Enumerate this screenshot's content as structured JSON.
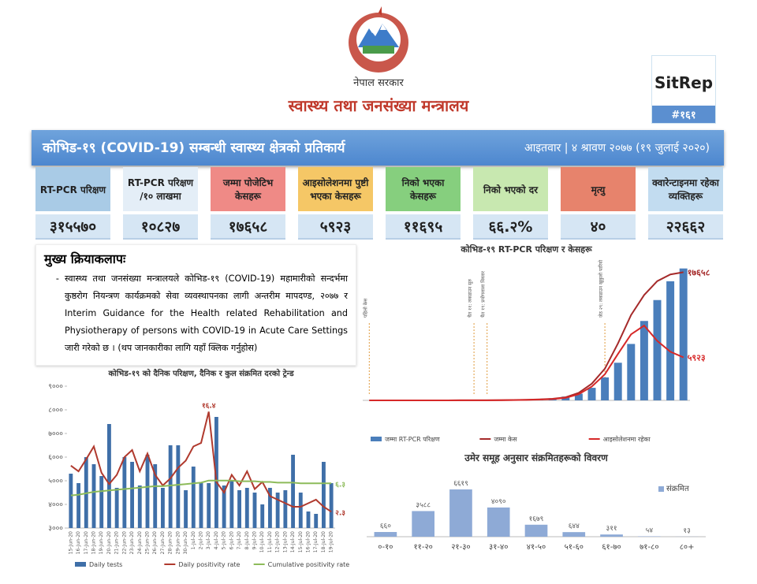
{
  "header": {
    "government": "नेपाल सरकार",
    "ministry": "स्वास्थ्य तथा जनसंख्या मन्त्रालय",
    "sitrep": "SitRep",
    "number": "#१६१"
  },
  "banner": {
    "title": "कोभिड-१९ (COVID-19) सम्बन्धी स्वास्थ्य क्षेत्रको प्रतिकार्य",
    "date": "आइतवार | ४ श्रावण २०७७ (१९ जुलाई २०२०)"
  },
  "stats": [
    {
      "label": "RT-PCR परिक्षण",
      "value": "३१५५७०"
    },
    {
      "label": "RT-PCR परिक्षण /१० लाखमा",
      "value": "१०८२७"
    },
    {
      "label": "जम्मा पोजेटिभ केसहरू",
      "value": "१७६५८"
    },
    {
      "label": "आइसोलेशनमा पुष्टी भएका केसहरू",
      "value": "५९२३"
    },
    {
      "label": "निको भएका केसहरू",
      "value": "११६९५"
    },
    {
      "label": "निको भएको दर",
      "value": "६६.२%"
    },
    {
      "label": "मृत्यु",
      "value": "४०"
    },
    {
      "label": "क्वारेन्टाइनमा रहेका व्यक्तिहरू",
      "value": "२२६६२"
    }
  ],
  "activities": {
    "heading": "मुख्य क्रियाकलापः",
    "items": [
      "स्वास्थ्य तथा जनसंख्या मन्त्रालयले कोभिड-१९ (COVID-19) महामारीको सन्दर्भमा कुष्ठरोग नियन्त्रण कार्यक्रमको सेवा व्यवस्थापनका लागी अन्तरीम मापदण्ड, २०७७ र Interim Guidance for the Health related Rehabilitation and Physiotherapy of persons with COVID-19 in Acute Care Settings जारी गरेको छ । (थप जानकारीका लागि यहाँ क्लिक गर्नुहोस)"
    ]
  },
  "chart_data": [
    {
      "type": "combo",
      "title": "कोभिड-१९ RT-PCR परिक्षण र केसहरू",
      "legend": "bottom",
      "categories": [
        null,
        null,
        null,
        null,
        null,
        null,
        null,
        null,
        null,
        null,
        null,
        null,
        null,
        null,
        null,
        null,
        null,
        null,
        null,
        null,
        null,
        null,
        null,
        null,
        null
      ],
      "ylim": [
        0,
        330000
      ],
      "y2lim": [
        0,
        19000
      ],
      "series": [
        {
          "name": "जम्मा RT-PCR परिक्षण",
          "mark": "bar",
          "color": "#4a7ebb",
          "values": [
            0,
            0,
            0,
            0,
            0,
            0,
            0,
            0,
            0,
            0,
            0,
            0,
            1000,
            2500,
            5000,
            9000,
            16000,
            30000,
            55000,
            90000,
            135000,
            190000,
            240000,
            285000,
            315570
          ]
        },
        {
          "name": "जम्मा केस",
          "mark": "line",
          "axis": "y2",
          "color": "#a52a2a",
          "values": [
            1,
            1,
            1,
            1,
            1,
            1,
            5,
            9,
            9,
            16,
            30,
            50,
            82,
            134,
            217,
            427,
            1042,
            2300,
            4364,
            7848,
            11755,
            14519,
            16423,
            17344,
            17658
          ],
          "value_labels": [
            null,
            null,
            null,
            null,
            null,
            null,
            null,
            null,
            null,
            null,
            null,
            null,
            null,
            null,
            null,
            null,
            null,
            null,
            null,
            null,
            null,
            null,
            null,
            null,
            "१७६५८"
          ]
        },
        {
          "name": "आइसोलेशनमा रहेका",
          "mark": "line",
          "axis": "y2",
          "color": "#d62828",
          "values": [
            1,
            1,
            1,
            1,
            1,
            1,
            5,
            9,
            8,
            15,
            27,
            44,
            70,
            110,
            180,
            350,
            850,
            1900,
            3600,
            6400,
            9100,
            10300,
            8200,
            6700,
            5923
          ],
          "value_labels": [
            null,
            null,
            null,
            null,
            null,
            null,
            null,
            null,
            null,
            null,
            null,
            null,
            null,
            null,
            null,
            null,
            null,
            null,
            null,
            null,
            null,
            null,
            null,
            null,
            "५९२३"
          ]
        }
      ],
      "annotations": [
        "पहिलो केस",
        "चैत ११: लकडाउन सुरु",
        "चैत १९: प्रयोगशाला विस्तार",
        "जेठ २९: लकडाउन खुकुलो पारियो"
      ]
    },
    {
      "type": "bar",
      "title": "उमेर समूह अनुसार संक्रमितहरूको विवरण",
      "legend": "top-right",
      "categories": [
        "०-१०",
        "११-२०",
        "२१-३०",
        "३१-४०",
        "४१-५०",
        "५१-६०",
        "६१-७०",
        "७१-८०",
        "८०+"
      ],
      "ylim": [
        0,
        7500
      ],
      "series": [
        {
          "name": "संक्रमित",
          "mark": "bar",
          "color": "#8eaad6",
          "values": [
            660,
            3588,
            6619,
            4090,
            1679,
            644,
            311,
            54,
            13
          ],
          "value_labels": [
            "६६०",
            "३५८८",
            "६६१९",
            "४०९०",
            "१६७९",
            "६४४",
            "३११",
            "५४",
            "१३"
          ]
        }
      ]
    },
    {
      "type": "combo",
      "title": "कोभिड-१९ को दैनिक परिक्षण, दैनिक र कुल संक्रमित दरको ट्रेन्ड",
      "legend": "bottom",
      "categories": [
        "15-Jun-20",
        "16-Jun-20",
        "17-Jun-20",
        "18-Jun-20",
        "19-Jun-20",
        "20-Jun-20",
        "21-Jun-20",
        "22-Jun-20",
        "23-Jun-20",
        "24-Jun-20",
        "25-Jun-20",
        "26-Jun-20",
        "27-Jun-20",
        "28-Jun-20",
        "29-Jun-20",
        "30-Jun-20",
        "1-Jul-20",
        "2-Jul-20",
        "3-Jul-20",
        "4-Jul-20",
        "5-Jul-20",
        "6-Jul-20",
        "7-Jul-20",
        "8-Jul-20",
        "9-Jul-20",
        "10-Jul-20",
        "11-Jul-20",
        "12-Jul-20",
        "13-Jul-20",
        "14-Jul-20",
        "15-Jul-20",
        "16-Jul-20",
        "17-Jul-20",
        "18-Jul-20",
        "19-Jul-20"
      ],
      "ylim": [
        3000,
        9000
      ],
      "yticks": [
        {
          "value": 3000,
          "label": "३०००"
        },
        {
          "value": 4000,
          "label": "४०००"
        },
        {
          "value": 5000,
          "label": "५०००"
        },
        {
          "value": 6000,
          "label": "६०००"
        },
        {
          "value": 7000,
          "label": "७०००"
        },
        {
          "value": 8000,
          "label": "८०००"
        },
        {
          "value": 9000,
          "label": "९०००"
        }
      ],
      "y2lim": [
        0,
        20
      ],
      "series": [
        {
          "name": "Daily tests",
          "mark": "bar",
          "color": "#3f6fa8",
          "values": [
            5300,
            4900,
            6000,
            5700,
            5200,
            7400,
            4700,
            6000,
            5800,
            4800,
            6100,
            5700,
            4700,
            6500,
            6500,
            4600,
            5600,
            4900,
            4900,
            7700,
            4800,
            5000,
            4600,
            4700,
            4500,
            4000,
            4700,
            4500,
            4600,
            6100,
            4500,
            3700,
            3600,
            5800,
            4900
          ]
        },
        {
          "name": "Daily positivity rate",
          "mark": "line",
          "axis": "y2",
          "color": "#b03a2e",
          "values": [
            8.8,
            8,
            9.7,
            11.5,
            7.8,
            6.2,
            7.5,
            10,
            11,
            8,
            10.5,
            7.5,
            6,
            7,
            8.5,
            9.5,
            11.5,
            12,
            16.4,
            6.5,
            5,
            7.5,
            6,
            8,
            5.5,
            6.5,
            4.5,
            4,
            3.5,
            3,
            3,
            3.5,
            4,
            3,
            2.3
          ],
          "value_labels": [
            null,
            null,
            null,
            null,
            null,
            null,
            null,
            null,
            null,
            null,
            null,
            null,
            null,
            null,
            null,
            null,
            null,
            null,
            "१६.४",
            null,
            null,
            null,
            null,
            null,
            null,
            null,
            null,
            null,
            null,
            null,
            null,
            null,
            null,
            null,
            "२.३"
          ]
        },
        {
          "name": "Cumulative positivity rate",
          "mark": "line",
          "axis": "y2",
          "color": "#8dbb5a",
          "values": [
            4.6,
            4.7,
            4.9,
            5.1,
            5.2,
            5.3,
            5.4,
            5.5,
            5.6,
            5.7,
            5.8,
            5.9,
            5.9,
            6,
            6.1,
            6.2,
            6.3,
            6.4,
            6.7,
            6.7,
            6.7,
            6.7,
            6.6,
            6.6,
            6.6,
            6.5,
            6.5,
            6.4,
            6.4,
            6.4,
            6.3,
            6.3,
            6.3,
            6.3,
            6.3
          ],
          "value_labels": [
            null,
            null,
            null,
            null,
            null,
            null,
            null,
            null,
            null,
            null,
            null,
            null,
            null,
            null,
            null,
            null,
            null,
            null,
            null,
            null,
            null,
            null,
            null,
            null,
            null,
            null,
            null,
            null,
            null,
            null,
            null,
            null,
            null,
            null,
            "६.३"
          ]
        }
      ]
    }
  ]
}
